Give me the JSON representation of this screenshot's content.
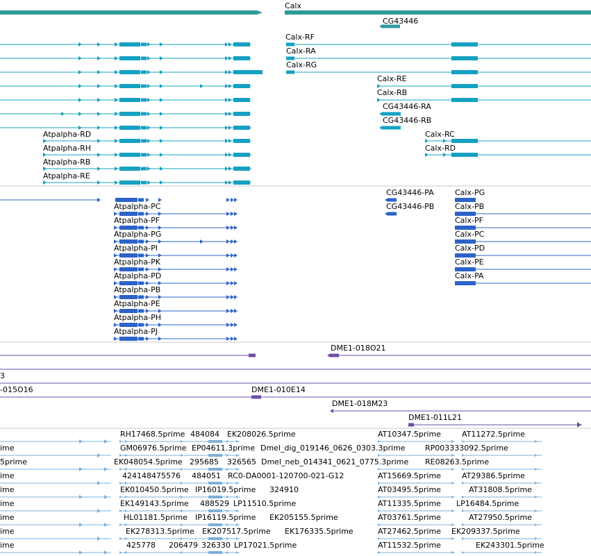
{
  "colors": {
    "gene": "#319a9a",
    "transcript": "#15a1c2",
    "protein": "#2d63c8",
    "clone": "#6e4da5",
    "est": "#7db0db",
    "separator": "#c8c8c8"
  },
  "tracks": {
    "gene": {
      "features": [
        {
          "label": "Calx"
        },
        {
          "label": "CG43446"
        }
      ]
    },
    "transcripts": {
      "features": [
        {
          "label": "Calx-RF"
        },
        {
          "label": "Calx-RA"
        },
        {
          "label": "Calx-RG"
        },
        {
          "label": "Calx-RE"
        },
        {
          "label": "Calx-RB"
        },
        {
          "label": "CG43446-RA"
        },
        {
          "label": "CG43446-RB"
        },
        {
          "label": "Atpalpha-RD"
        },
        {
          "label": "Calx-RC"
        },
        {
          "label": "Atpalpha-RH"
        },
        {
          "label": "Calx-RD"
        },
        {
          "label": "Atpalpha-RB"
        },
        {
          "label": "Atpalpha-RE"
        }
      ]
    },
    "proteins": {
      "features": [
        {
          "label": "CG43446-PA"
        },
        {
          "label": "Calx-PG"
        },
        {
          "label": "Atpalpha-PC"
        },
        {
          "label": "CG43446-PB"
        },
        {
          "label": "Calx-PB"
        },
        {
          "label": "Atpalpha-PF"
        },
        {
          "label": "Calx-PF"
        },
        {
          "label": "Atpalpha-PG"
        },
        {
          "label": "Calx-PC"
        },
        {
          "label": "Atpalpha-PI"
        },
        {
          "label": "Calx-PD"
        },
        {
          "label": "Atpalpha-PK"
        },
        {
          "label": "Calx-PE"
        },
        {
          "label": "Atpalpha-PD"
        },
        {
          "label": "Calx-PA"
        },
        {
          "label": "Atpalpha-PB"
        },
        {
          "label": "Atpalpha-PE"
        },
        {
          "label": "Atpalpha-PH"
        },
        {
          "label": "Atpalpha-PJ"
        }
      ]
    },
    "clones": {
      "features": [
        {
          "label": "DME1-018O21"
        },
        {
          "label": "3"
        },
        {
          "label": "-015O16"
        },
        {
          "label": "DME1-010E14"
        },
        {
          "label": "DME1-018M23"
        },
        {
          "label": "DME1-011L21"
        }
      ]
    },
    "ests": {
      "features": [
        {
          "label": "RH17468.5prime"
        },
        {
          "label": "484084"
        },
        {
          "label": "EK208026.5prime"
        },
        {
          "label": "AT10347.5prime"
        },
        {
          "label": "AT11272.5prime"
        },
        {
          "label": "ime"
        },
        {
          "label": "GM06976.5prime"
        },
        {
          "label": "EP04611.3prime"
        },
        {
          "label": "Dmel_dig_019146_0626_0303.3prime"
        },
        {
          "label": "RP003333092.5prime"
        },
        {
          "label": "5prime"
        },
        {
          "label": "EK048054.5prime"
        },
        {
          "label": "295685"
        },
        {
          "label": "326565"
        },
        {
          "label": "Dmel_neb_014341_0621_0775.3prime"
        },
        {
          "label": "RE08263.5prime"
        },
        {
          "label": "ime"
        },
        {
          "label": "424148475576"
        },
        {
          "label": "484051"
        },
        {
          "label": "RC0-DA0001-120700-021-G12"
        },
        {
          "label": "AT15669.5prime"
        },
        {
          "label": "AT29386.5prime"
        },
        {
          "label": "ime"
        },
        {
          "label": "EK010450.5prime"
        },
        {
          "label": "IP16019.5prime"
        },
        {
          "label": "324910"
        },
        {
          "label": "AT03495.5prime"
        },
        {
          "label": "AT31808.5prime"
        },
        {
          "label": "ime"
        },
        {
          "label": "EK149143.5prime"
        },
        {
          "label": "488529"
        },
        {
          "label": "LP11510.5prime"
        },
        {
          "label": "AT11335.5prime"
        },
        {
          "label": "LP16484.5prime"
        },
        {
          "label": "ime"
        },
        {
          "label": "HL01181.5prime"
        },
        {
          "label": "IP16119.5prime"
        },
        {
          "label": "EK205155.5prime"
        },
        {
          "label": "AT03761.5prime"
        },
        {
          "label": "AT27950.5prime"
        },
        {
          "label": "ime"
        },
        {
          "label": "EK278313.5prime"
        },
        {
          "label": "EK207517.5prime"
        },
        {
          "label": "EK176335.5prime"
        },
        {
          "label": "AT27462.5prime"
        },
        {
          "label": "EK209337.5prime"
        },
        {
          "label": "ime"
        },
        {
          "label": "425778"
        },
        {
          "label": "206479"
        },
        {
          "label": "326330"
        },
        {
          "label": "LP17021.5prime"
        },
        {
          "label": "AT11532.5prime"
        },
        {
          "label": "EK243301.5prime"
        }
      ]
    }
  }
}
